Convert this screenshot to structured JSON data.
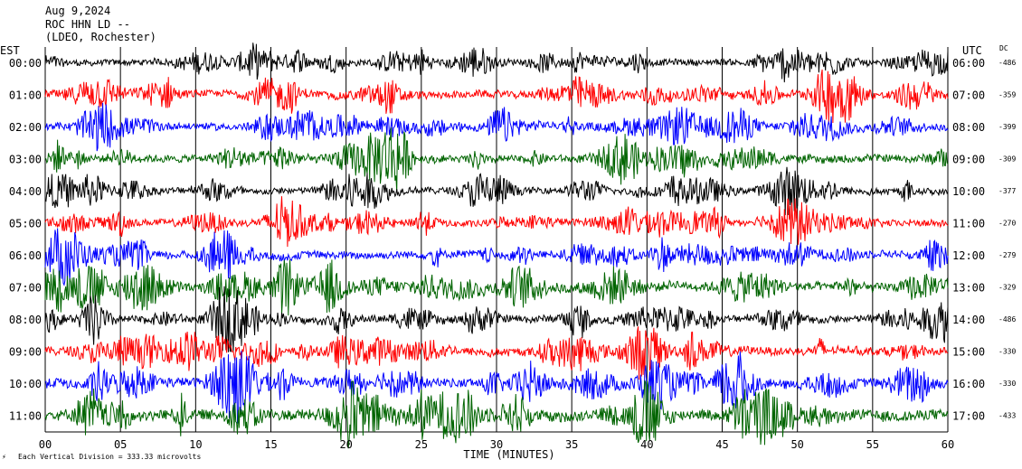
{
  "header": {
    "date": "Aug 9,2024",
    "station": "ROC HHN LD --",
    "network": "(LDEO, Rochester)"
  },
  "left_axis_label": "EST",
  "right_axis_label": "UTC",
  "dc_label": "DC",
  "footer": {
    "scale_text": "Each Vertical Division =  333.33 microvolts",
    "scale_mark": "⚡"
  },
  "colors": {
    "black": "#000000",
    "red": "#ff0000",
    "blue": "#0000ff",
    "green": "#006400",
    "grid": "#000000"
  },
  "chart_data": {
    "type": "line",
    "title": "Aug 9,2024 ROC HHN LD -- (LDEO, Rochester)",
    "xlabel": "TIME (MINUTES)",
    "ylabel": "",
    "xlim": [
      0,
      60
    ],
    "x_ticks": [
      "00",
      "05",
      "10",
      "15",
      "20",
      "25",
      "30",
      "35",
      "40",
      "45",
      "50",
      "55",
      "60"
    ],
    "grid": "vertical lines every 5 minutes",
    "series": [
      {
        "est": "00:00",
        "utc": "06:00",
        "dc": "-486",
        "color": "black",
        "amplitude": 0.38
      },
      {
        "est": "01:00",
        "utc": "07:00",
        "dc": "-359",
        "color": "red",
        "amplitude": 0.42
      },
      {
        "est": "02:00",
        "utc": "08:00",
        "dc": "-399",
        "color": "blue",
        "amplitude": 0.42
      },
      {
        "est": "03:00",
        "utc": "09:00",
        "dc": "-309",
        "color": "green",
        "amplitude": 0.45
      },
      {
        "est": "04:00",
        "utc": "10:00",
        "dc": "-377",
        "color": "black",
        "amplitude": 0.4
      },
      {
        "est": "05:00",
        "utc": "11:00",
        "dc": "-270",
        "color": "red",
        "amplitude": 0.42
      },
      {
        "est": "06:00",
        "utc": "12:00",
        "dc": "-279",
        "color": "blue",
        "amplitude": 0.45
      },
      {
        "est": "07:00",
        "utc": "13:00",
        "dc": "-329",
        "color": "green",
        "amplitude": 0.55
      },
      {
        "est": "08:00",
        "utc": "14:00",
        "dc": "-486",
        "color": "black",
        "amplitude": 0.45
      },
      {
        "est": "09:00",
        "utc": "15:00",
        "dc": "-330",
        "color": "red",
        "amplitude": 0.5
      },
      {
        "est": "10:00",
        "utc": "16:00",
        "dc": "-330",
        "color": "blue",
        "amplitude": 0.55
      },
      {
        "est": "11:00",
        "utc": "17:00",
        "dc": "-433",
        "color": "green",
        "amplitude": 0.65
      }
    ]
  }
}
